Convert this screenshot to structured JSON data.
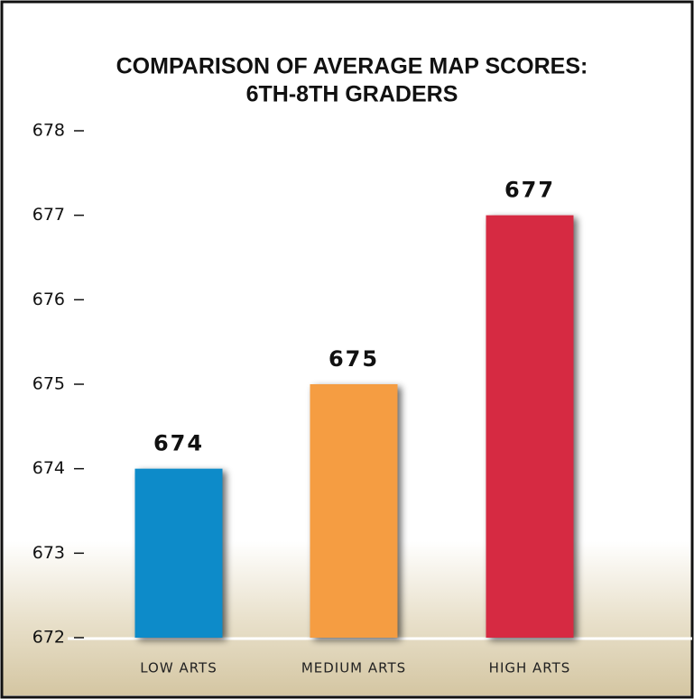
{
  "chart_data": {
    "type": "bar",
    "title": [
      "COMPARISON OF AVERAGE MAP SCORES:",
      "6TH-8TH GRADERS"
    ],
    "categories": [
      "LOW ARTS",
      "MEDIUM ARTS",
      "HIGH ARTS"
    ],
    "values": [
      674,
      675,
      677
    ],
    "colors": [
      "#0a8bc9",
      "#f59d42",
      "#d62b42"
    ],
    "ylim": [
      672,
      678
    ],
    "yticks": [
      672,
      673,
      674,
      675,
      676,
      677,
      678
    ],
    "grid": false
  }
}
